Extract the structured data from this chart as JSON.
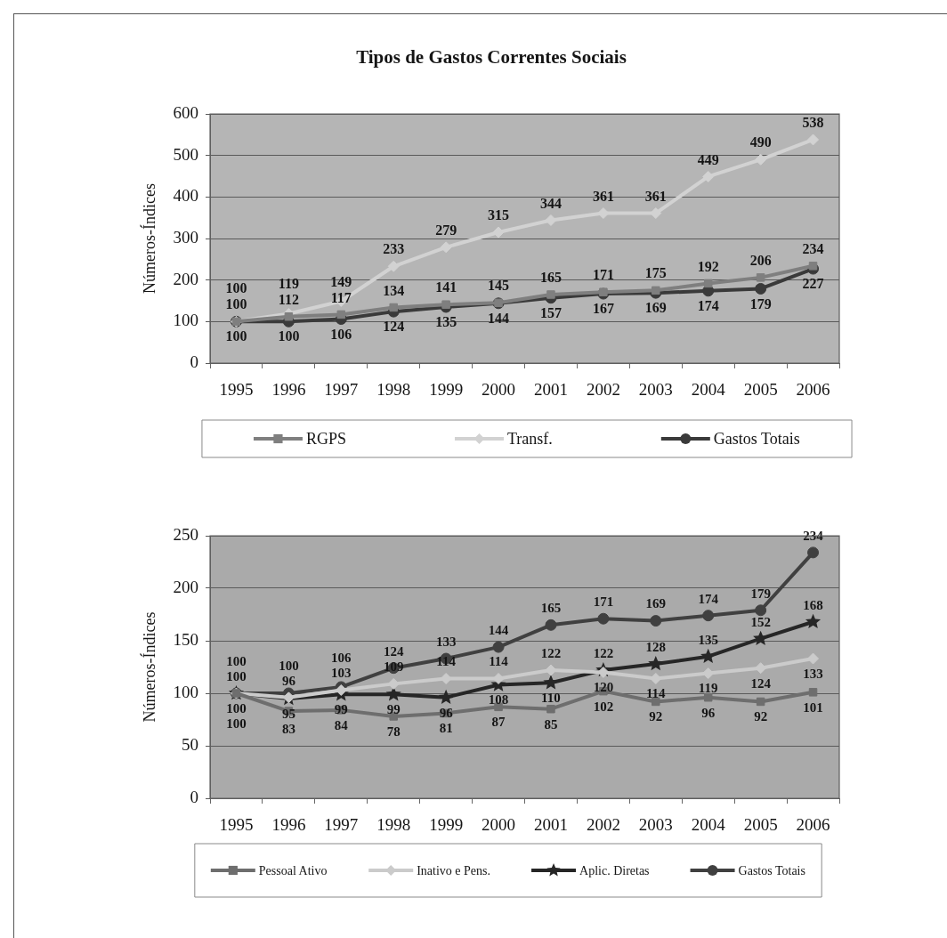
{
  "chart_data": [
    {
      "type": "line",
      "title": "Tipos de Gastos Correntes Sociais",
      "ylabel": "Números-Índices",
      "categories": [
        "1995",
        "1996",
        "1997",
        "1998",
        "1999",
        "2000",
        "2001",
        "2002",
        "2003",
        "2004",
        "2005",
        "2006"
      ],
      "series": [
        {
          "name": "RGPS",
          "color": "#7f7f7f",
          "marker": "square",
          "values": [
            100,
            112,
            117,
            134,
            141,
            145,
            165,
            171,
            175,
            192,
            206,
            234
          ]
        },
        {
          "name": "Transf.",
          "color": "#d2d2d2",
          "marker": "diamond",
          "values": [
            100,
            119,
            149,
            233,
            279,
            315,
            344,
            361,
            361,
            449,
            490,
            538
          ]
        },
        {
          "name": "Gastos Totais",
          "color": "#3a3a3a",
          "marker": "circle",
          "values": [
            100,
            100,
            106,
            124,
            135,
            144,
            157,
            167,
            169,
            174,
            179,
            227
          ]
        }
      ],
      "ylim": [
        0,
        600
      ],
      "yticks": [
        0,
        100,
        200,
        300,
        400,
        500,
        600
      ],
      "grid": "y",
      "legend": "bottom",
      "data_labels": true
    },
    {
      "type": "line",
      "ylabel": "Números-Índices",
      "categories": [
        "1995",
        "1996",
        "1997",
        "1998",
        "1999",
        "2000",
        "2001",
        "2002",
        "2003",
        "2004",
        "2005",
        "2006"
      ],
      "series": [
        {
          "name": "Pessoal Ativo",
          "color": "#6e6e6e",
          "marker": "square",
          "values": [
            100,
            83,
            84,
            78,
            81,
            87,
            85,
            102,
            92,
            96,
            92,
            101
          ]
        },
        {
          "name": "Inativo e Pens.",
          "color": "#cbcbcb",
          "marker": "diamond",
          "values": [
            100,
            96,
            103,
            109,
            114,
            114,
            122,
            120,
            114,
            119,
            124,
            133
          ]
        },
        {
          "name": "Aplic. Diretas",
          "color": "#262626",
          "marker": "star",
          "values": [
            100,
            95,
            99,
            99,
            96,
            108,
            110,
            122,
            128,
            135,
            152,
            168
          ]
        },
        {
          "name": "Gastos Totais",
          "color": "#404040",
          "marker": "circle",
          "values": [
            100,
            100,
            106,
            124,
            133,
            144,
            165,
            171,
            169,
            174,
            179,
            234
          ]
        }
      ],
      "ylim": [
        0,
        250
      ],
      "yticks": [
        0,
        50,
        100,
        150,
        200,
        250
      ],
      "grid": "y",
      "legend": "bottom",
      "data_labels": true
    }
  ]
}
